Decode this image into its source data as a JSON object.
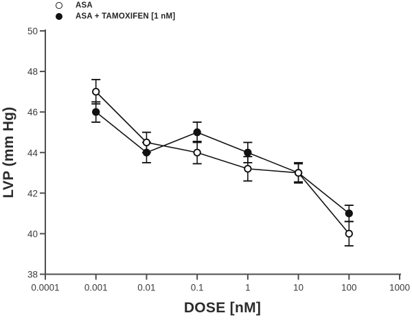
{
  "chart_data": {
    "type": "line",
    "title": "",
    "xlabel": "DOSE [nM]",
    "ylabel": "LVP (mm Hg)",
    "x_scale": "log",
    "xlim": [
      0.0001,
      1000
    ],
    "ylim": [
      38,
      50
    ],
    "grid": false,
    "legend_position": "top-left",
    "x": [
      0.001,
      0.01,
      0.1,
      1,
      10,
      100
    ],
    "x_ticks": [
      0.0001,
      0.001,
      0.01,
      0.1,
      1,
      10,
      100,
      1000
    ],
    "x_tick_labels": [
      "0.0001",
      "0.001",
      "0.01",
      "0.1",
      "1",
      "10",
      "100",
      "1000"
    ],
    "y_ticks": [
      38,
      40,
      42,
      44,
      46,
      48,
      50
    ],
    "series": [
      {
        "name": "ASA",
        "marker": "open-circle",
        "values": [
          47.0,
          44.5,
          44.0,
          43.2,
          43.0,
          40.0
        ],
        "errors": [
          0.6,
          0.5,
          0.55,
          0.6,
          0.5,
          0.6
        ]
      },
      {
        "name": "ASA + TAMOXIFEN [1 nM]",
        "marker": "filled-circle",
        "values": [
          46.0,
          44.0,
          45.0,
          44.0,
          43.0,
          41.0
        ],
        "errors": [
          0.5,
          0.5,
          0.5,
          0.5,
          0.45,
          0.4
        ]
      }
    ],
    "colors": {
      "data": "#111111",
      "axis": "#4d4d4d",
      "tick_text": "#3a3a3a"
    }
  }
}
